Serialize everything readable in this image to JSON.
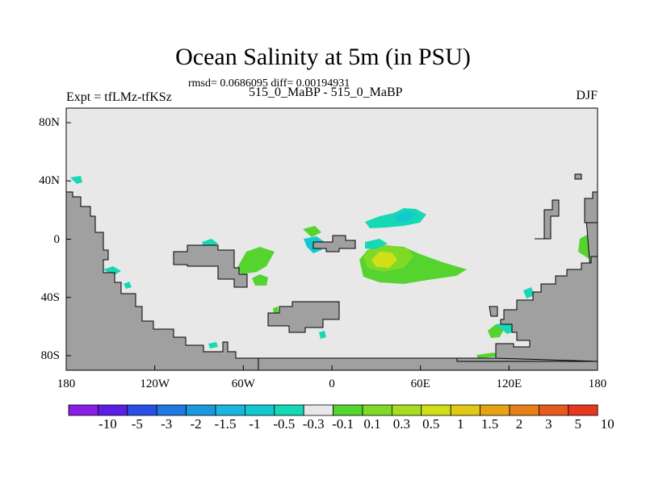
{
  "title": "Ocean Salinity at 5m (in PSU)",
  "stats": "rmsd= 0.0686095 diff= 0.00194931",
  "expt": "Expt = tfLMz-tfKSz",
  "runs": "515_0_MaBP - 515_0_MaBP",
  "season": "DJF",
  "lat_labels": [
    {
      "text": "80N",
      "lat": 80
    },
    {
      "text": "40N",
      "lat": 40
    },
    {
      "text": "0",
      "lat": 0
    },
    {
      "text": "40S",
      "lat": -40
    },
    {
      "text": "80S",
      "lat": -80
    }
  ],
  "lon_labels": [
    {
      "text": "180",
      "lon": -180
    },
    {
      "text": "120W",
      "lon": -120
    },
    {
      "text": "60W",
      "lon": -60
    },
    {
      "text": "0",
      "lon": 0
    },
    {
      "text": "60E",
      "lon": 60
    },
    {
      "text": "120E",
      "lon": 120
    },
    {
      "text": "180",
      "lon": 180
    }
  ],
  "colorbar": {
    "colors": [
      "#8b1ee6",
      "#5a1ee6",
      "#2a4fe6",
      "#1f79e0",
      "#1b98e0",
      "#19b6e0",
      "#14c8d2",
      "#16d8b4",
      "#e8e8e8",
      "#55d32f",
      "#7fd927",
      "#a6dd20",
      "#d0df18",
      "#e1c815",
      "#e6a414",
      "#e6801a",
      "#e65a1e",
      "#e6381e"
    ],
    "labels": [
      "-10",
      "-5",
      "-3",
      "-2",
      "-1.5",
      "-1",
      "-0.5",
      "-0.3",
      "-0.1",
      "0.1",
      "0.3",
      "0.5",
      "1",
      "1.5",
      "2",
      "3",
      "5",
      "10"
    ]
  },
  "colors": {
    "ocean": "#e8e8e8",
    "land": "#a0a0a0"
  }
}
